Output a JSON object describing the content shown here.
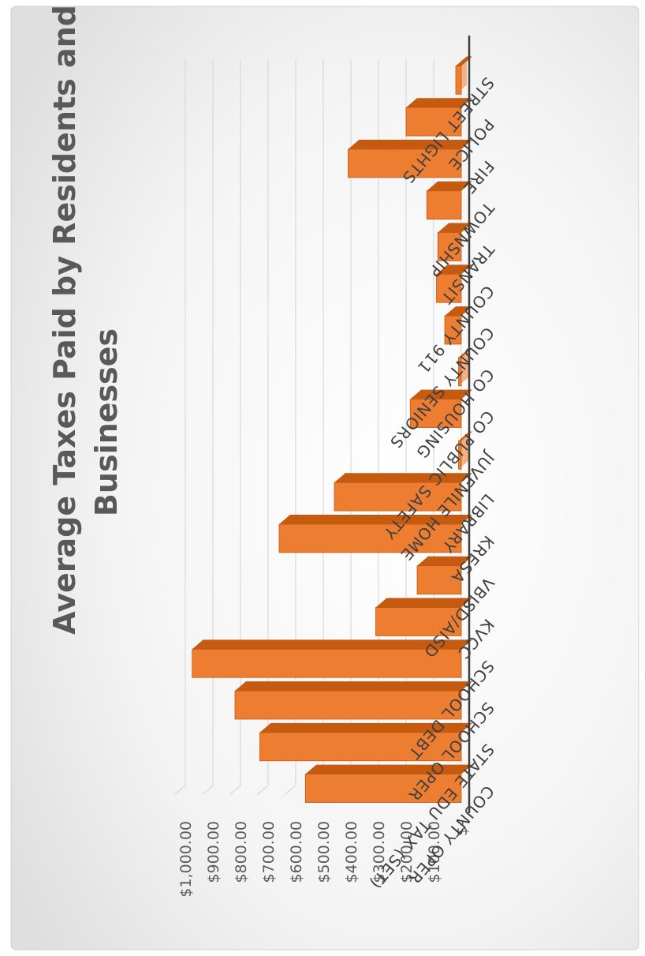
{
  "chart_data": {
    "type": "bar",
    "orientation": "rotated-90-clockwise",
    "title": "Average Taxes Paid by Residents and Businesses",
    "title_lines": [
      "Average Taxes Paid by Residents and",
      "Businesses"
    ],
    "categories": [
      "COUNTY OPER",
      "STATE EDU TAX (SET)",
      "SCHOOL OPER",
      "SCHOOL DEBT",
      "KVCC",
      "VBISD/AISD",
      "KRESA",
      "LIBRARY",
      "JUVENILE HOME",
      "CO PUBLIC SAFETY",
      "CO HOUSING",
      "COUNTY SENIORS",
      "COUNTY 911",
      "TRANSIT",
      "TOWNSHIP",
      "FIRE",
      "POLICE",
      "STREET LIGHTS"
    ],
    "values": [
      565,
      730,
      820,
      975,
      310,
      160,
      660,
      460,
      10,
      185,
      10,
      60,
      90,
      85,
      125,
      410,
      200,
      20
    ],
    "ylim": [
      0,
      1000
    ],
    "y_ticks": [
      "$-",
      "$100.00",
      "$200.00",
      "$300.00",
      "$400.00",
      "$500.00",
      "$600.00",
      "$700.00",
      "$800.00",
      "$900.00",
      "$1,000.00"
    ],
    "grid": true,
    "legend": "none",
    "colors": {
      "bar_front": "#ed7d31",
      "bar_side": "#c55a11",
      "bar_top": "#f4b183",
      "grid": "#d9d9d9",
      "axis": "#404040"
    }
  }
}
